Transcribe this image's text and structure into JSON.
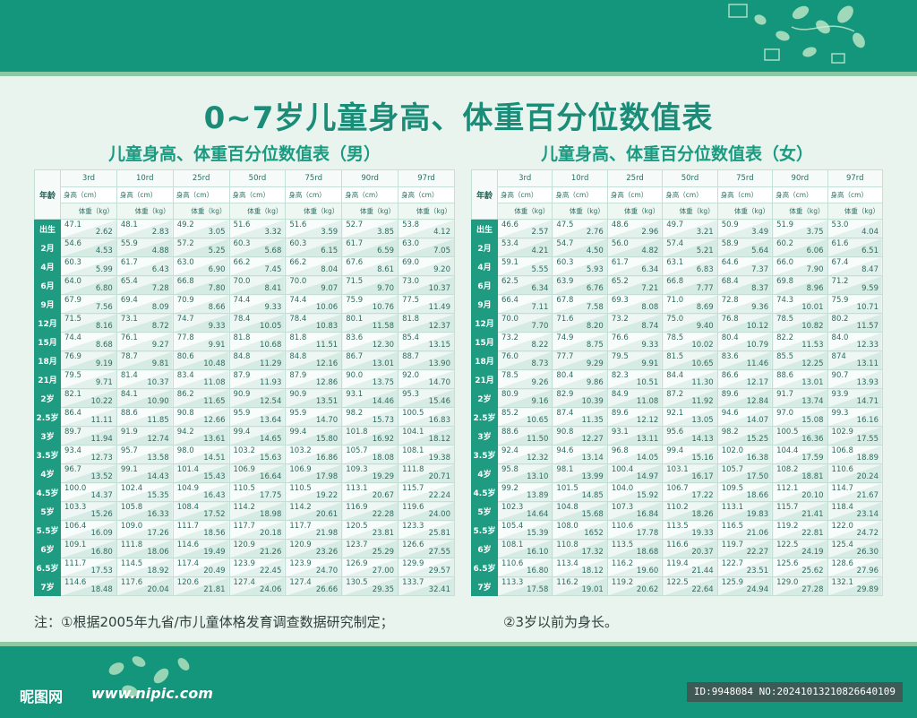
{
  "title": "0~7岁儿童身高、体重百分位数值表",
  "columns": [
    "3rd",
    "10rd",
    "25rd",
    "50rd",
    "75rd",
    "90rd",
    "97rd"
  ],
  "age_header": "年龄",
  "height_unit": "身高（cm）",
  "weight_unit": "体重（kg）",
  "ages": [
    "出生",
    "2月",
    "4月",
    "6月",
    "9月",
    "12月",
    "15月",
    "18月",
    "21月",
    "2岁",
    "2.5岁",
    "3岁",
    "3.5岁",
    "4岁",
    "4.5岁",
    "5岁",
    "5.5岁",
    "6岁",
    "6.5岁",
    "7岁"
  ],
  "boys": {
    "subtitle": "儿童身高、体重百分位数值表（男）",
    "rows": [
      [
        [
          "47.1",
          "2.62"
        ],
        [
          "48.1",
          "2.83"
        ],
        [
          "49.2",
          "3.05"
        ],
        [
          "51.6",
          "3.32"
        ],
        [
          "51.6",
          "3.59"
        ],
        [
          "52.7",
          "3.85"
        ],
        [
          "53.8",
          "4.12"
        ]
      ],
      [
        [
          "54.6",
          "4.53"
        ],
        [
          "55.9",
          "4.88"
        ],
        [
          "57.2",
          "5.25"
        ],
        [
          "60.3",
          "5.68"
        ],
        [
          "60.3",
          "6.15"
        ],
        [
          "61.7",
          "6.59"
        ],
        [
          "63.0",
          "7.05"
        ]
      ],
      [
        [
          "60.3",
          "5.99"
        ],
        [
          "61.7",
          "6.43"
        ],
        [
          "63.0",
          "6.90"
        ],
        [
          "66.2",
          "7.45"
        ],
        [
          "66.2",
          "8.04"
        ],
        [
          "67.6",
          "8.61"
        ],
        [
          "69.0",
          "9.20"
        ]
      ],
      [
        [
          "64.0",
          "6.80"
        ],
        [
          "65.4",
          "7.28"
        ],
        [
          "66.8",
          "7.80"
        ],
        [
          "70.0",
          "8.41"
        ],
        [
          "70.0",
          "9.07"
        ],
        [
          "71.5",
          "9.70"
        ],
        [
          "73.0",
          "10.37"
        ]
      ],
      [
        [
          "67.9",
          "7.56"
        ],
        [
          "69.4",
          "8.09"
        ],
        [
          "70.9",
          "8.66"
        ],
        [
          "74.4",
          "9.33"
        ],
        [
          "74.4",
          "10.06"
        ],
        [
          "75.9",
          "10.76"
        ],
        [
          "77.5",
          "11.49"
        ]
      ],
      [
        [
          "71.5",
          "8.16"
        ],
        [
          "73.1",
          "8.72"
        ],
        [
          "74.7",
          "9.33"
        ],
        [
          "78.4",
          "10.05"
        ],
        [
          "78.4",
          "10.83"
        ],
        [
          "80.1",
          "11.58"
        ],
        [
          "81.8",
          "12.37"
        ]
      ],
      [
        [
          "74.4",
          "8.68"
        ],
        [
          "76.1",
          "9.27"
        ],
        [
          "77.8",
          "9.91"
        ],
        [
          "81.8",
          "10.68"
        ],
        [
          "81.8",
          "11.51"
        ],
        [
          "83.6",
          "12.30"
        ],
        [
          "85.4",
          "13.15"
        ]
      ],
      [
        [
          "76.9",
          "9.19"
        ],
        [
          "78.7",
          "9.81"
        ],
        [
          "80.6",
          "10.48"
        ],
        [
          "84.8",
          "11.29"
        ],
        [
          "84.8",
          "12.16"
        ],
        [
          "86.7",
          "13.01"
        ],
        [
          "88.7",
          "13.90"
        ]
      ],
      [
        [
          "79.5",
          "9.71"
        ],
        [
          "81.4",
          "10.37"
        ],
        [
          "83.4",
          "11.08"
        ],
        [
          "87.9",
          "11.93"
        ],
        [
          "87.9",
          "12.86"
        ],
        [
          "90.0",
          "13.75"
        ],
        [
          "92.0",
          "14.70"
        ]
      ],
      [
        [
          "82.1",
          "10.22"
        ],
        [
          "84.1",
          "10.90"
        ],
        [
          "86.2",
          "11.65"
        ],
        [
          "90.9",
          "12.54"
        ],
        [
          "90.9",
          "13.51"
        ],
        [
          "93.1",
          "14.46"
        ],
        [
          "95.3",
          "15.46"
        ]
      ],
      [
        [
          "86.4",
          "11.11"
        ],
        [
          "88.6",
          "11.85"
        ],
        [
          "90.8",
          "12.66"
        ],
        [
          "95.9",
          "13.64"
        ],
        [
          "95.9",
          "14.70"
        ],
        [
          "98.2",
          "15.73"
        ],
        [
          "100.5",
          "16.83"
        ]
      ],
      [
        [
          "89.7",
          "11.94"
        ],
        [
          "91.9",
          "12.74"
        ],
        [
          "94.2",
          "13.61"
        ],
        [
          "99.4",
          "14.65"
        ],
        [
          "99.4",
          "15.80"
        ],
        [
          "101.8",
          "16.92"
        ],
        [
          "104.1",
          "18.12"
        ]
      ],
      [
        [
          "93.4",
          "12.73"
        ],
        [
          "95.7",
          "13.58"
        ],
        [
          "98.0",
          "14.51"
        ],
        [
          "103.2",
          "15.63"
        ],
        [
          "103.2",
          "16.86"
        ],
        [
          "105.7",
          "18.08"
        ],
        [
          "108.1",
          "19.38"
        ]
      ],
      [
        [
          "96.7",
          "13.52"
        ],
        [
          "99.1",
          "14.43"
        ],
        [
          "101.4",
          "15.43"
        ],
        [
          "106.9",
          "16.64"
        ],
        [
          "106.9",
          "17.98"
        ],
        [
          "109.3",
          "19.29"
        ],
        [
          "111.8",
          "20.71"
        ]
      ],
      [
        [
          "100.0",
          "14.37"
        ],
        [
          "102.4",
          "15.35"
        ],
        [
          "104.9",
          "16.43"
        ],
        [
          "110.5",
          "17.75"
        ],
        [
          "110.5",
          "19.22"
        ],
        [
          "113.1",
          "20.67"
        ],
        [
          "115.7",
          "22.24"
        ]
      ],
      [
        [
          "103.3",
          "15.26"
        ],
        [
          "105.8",
          "16.33"
        ],
        [
          "108.4",
          "17.52"
        ],
        [
          "114.2",
          "18.98"
        ],
        [
          "114.2",
          "20.61"
        ],
        [
          "116.9",
          "22.28"
        ],
        [
          "119.6",
          "24.00"
        ]
      ],
      [
        [
          "106.4",
          "16.09"
        ],
        [
          "109.0",
          "17.26"
        ],
        [
          "111.7",
          "18.56"
        ],
        [
          "117.7",
          "20.18"
        ],
        [
          "117.7",
          "21.98"
        ],
        [
          "120.5",
          "23.81"
        ],
        [
          "123.3",
          "25.81"
        ]
      ],
      [
        [
          "109.1",
          "16.80"
        ],
        [
          "111.8",
          "18.06"
        ],
        [
          "114.6",
          "19.49"
        ],
        [
          "120.9",
          "21.26"
        ],
        [
          "120.9",
          "23.26"
        ],
        [
          "123.7",
          "25.29"
        ],
        [
          "126.6",
          "27.55"
        ]
      ],
      [
        [
          "111.7",
          "17.53"
        ],
        [
          "114.5",
          "18.92"
        ],
        [
          "117.4",
          "20.49"
        ],
        [
          "123.9",
          "22.45"
        ],
        [
          "123.9",
          "24.70"
        ],
        [
          "126.9",
          "27.00"
        ],
        [
          "129.9",
          "29.57"
        ]
      ],
      [
        [
          "114.6",
          "18.48"
        ],
        [
          "117.6",
          "20.04"
        ],
        [
          "120.6",
          "21.81"
        ],
        [
          "127.4",
          "24.06"
        ],
        [
          "127.4",
          "26.66"
        ],
        [
          "130.5",
          "29.35"
        ],
        [
          "133.7",
          "32.41"
        ]
      ]
    ]
  },
  "girls": {
    "subtitle": "儿童身高、体重百分位数值表（女）",
    "rows": [
      [
        [
          "46.6",
          "2.57"
        ],
        [
          "47.5",
          "2.76"
        ],
        [
          "48.6",
          "2.96"
        ],
        [
          "49.7",
          "3.21"
        ],
        [
          "50.9",
          "3.49"
        ],
        [
          "51.9",
          "3.75"
        ],
        [
          "53.0",
          "4.04"
        ]
      ],
      [
        [
          "53.4",
          "4.21"
        ],
        [
          "54.7",
          "4.50"
        ],
        [
          "56.0",
          "4.82"
        ],
        [
          "57.4",
          "5.21"
        ],
        [
          "58.9",
          "5.64"
        ],
        [
          "60.2",
          "6.06"
        ],
        [
          "61.6",
          "6.51"
        ]
      ],
      [
        [
          "59.1",
          "5.55"
        ],
        [
          "60.3",
          "5.93"
        ],
        [
          "61.7",
          "6.34"
        ],
        [
          "63.1",
          "6.83"
        ],
        [
          "64.6",
          "7.37"
        ],
        [
          "66.0",
          "7.90"
        ],
        [
          "67.4",
          "8.47"
        ]
      ],
      [
        [
          "62.5",
          "6.34"
        ],
        [
          "63.9",
          "6.76"
        ],
        [
          "65.2",
          "7.21"
        ],
        [
          "66.8",
          "7.77"
        ],
        [
          "68.4",
          "8.37"
        ],
        [
          "69.8",
          "8.96"
        ],
        [
          "71.2",
          "9.59"
        ]
      ],
      [
        [
          "66.4",
          "7.11"
        ],
        [
          "67.8",
          "7.58"
        ],
        [
          "69.3",
          "8.08"
        ],
        [
          "71.0",
          "8.69"
        ],
        [
          "72.8",
          "9.36"
        ],
        [
          "74.3",
          "10.01"
        ],
        [
          "75.9",
          "10.71"
        ]
      ],
      [
        [
          "70.0",
          "7.70"
        ],
        [
          "71.6",
          "8.20"
        ],
        [
          "73.2",
          "8.74"
        ],
        [
          "75.0",
          "9.40"
        ],
        [
          "76.8",
          "10.12"
        ],
        [
          "78.5",
          "10.82"
        ],
        [
          "80.2",
          "11.57"
        ]
      ],
      [
        [
          "73.2",
          "8.22"
        ],
        [
          "74.9",
          "8.75"
        ],
        [
          "76.6",
          "9.33"
        ],
        [
          "78.5",
          "10.02"
        ],
        [
          "80.4",
          "10.79"
        ],
        [
          "82.2",
          "11.53"
        ],
        [
          "84.0",
          "12.33"
        ]
      ],
      [
        [
          "76.0",
          "8.73"
        ],
        [
          "77.7",
          "9.29"
        ],
        [
          "79.5",
          "9.91"
        ],
        [
          "81.5",
          "10.65"
        ],
        [
          "83.6",
          "11.46"
        ],
        [
          "85.5",
          "12.25"
        ],
        [
          "874",
          "13.11"
        ]
      ],
      [
        [
          "78.5",
          "9.26"
        ],
        [
          "80.4",
          "9.86"
        ],
        [
          "82.3",
          "10.51"
        ],
        [
          "84.4",
          "11.30"
        ],
        [
          "86.6",
          "12.17"
        ],
        [
          "88.6",
          "13.01"
        ],
        [
          "90.7",
          "13.93"
        ]
      ],
      [
        [
          "80.9",
          "9.16"
        ],
        [
          "82.9",
          "10.39"
        ],
        [
          "84.9",
          "11.08"
        ],
        [
          "87.2",
          "11.92"
        ],
        [
          "89.6",
          "12.84"
        ],
        [
          "91.7",
          "13.74"
        ],
        [
          "93.9",
          "14.71"
        ]
      ],
      [
        [
          "85.2",
          "10.65"
        ],
        [
          "87.4",
          "11.35"
        ],
        [
          "89.6",
          "12.12"
        ],
        [
          "92.1",
          "13.05"
        ],
        [
          "94.6",
          "14.07"
        ],
        [
          "97.0",
          "15.08"
        ],
        [
          "99.3",
          "16.16"
        ]
      ],
      [
        [
          "88.6",
          "11.50"
        ],
        [
          "90.8",
          "12.27"
        ],
        [
          "93.1",
          "13.11"
        ],
        [
          "95.6",
          "14.13"
        ],
        [
          "98.2",
          "15.25"
        ],
        [
          "100.5",
          "16.36"
        ],
        [
          "102.9",
          "17.55"
        ]
      ],
      [
        [
          "92.4",
          "12.32"
        ],
        [
          "94.6",
          "13.14"
        ],
        [
          "96.8",
          "14.05"
        ],
        [
          "99.4",
          "15.16"
        ],
        [
          "102.0",
          "16.38"
        ],
        [
          "104.4",
          "17.59"
        ],
        [
          "106.8",
          "18.89"
        ]
      ],
      [
        [
          "95.8",
          "13.10"
        ],
        [
          "98.1",
          "13.99"
        ],
        [
          "100.4",
          "14.97"
        ],
        [
          "103.1",
          "16.17"
        ],
        [
          "105.7",
          "17.50"
        ],
        [
          "108.2",
          "18.81"
        ],
        [
          "110.6",
          "20.24"
        ]
      ],
      [
        [
          "99.2",
          "13.89"
        ],
        [
          "101.5",
          "14.85"
        ],
        [
          "104.0",
          "15.92"
        ],
        [
          "106.7",
          "17.22"
        ],
        [
          "109.5",
          "18.66"
        ],
        [
          "112.1",
          "20.10"
        ],
        [
          "114.7",
          "21.67"
        ]
      ],
      [
        [
          "102.3",
          "14.64"
        ],
        [
          "104.8",
          "15.68"
        ],
        [
          "107.3",
          "16.84"
        ],
        [
          "110.2",
          "18.26"
        ],
        [
          "113.1",
          "19.83"
        ],
        [
          "115.7",
          "21.41"
        ],
        [
          "118.4",
          "23.14"
        ]
      ],
      [
        [
          "105.4",
          "15.39"
        ],
        [
          "108.0",
          "1652"
        ],
        [
          "110.6",
          "17.78"
        ],
        [
          "113.5",
          "19.33"
        ],
        [
          "116.5",
          "21.06"
        ],
        [
          "119.2",
          "22.81"
        ],
        [
          "122.0",
          "24.72"
        ]
      ],
      [
        [
          "108.1",
          "16.10"
        ],
        [
          "110.8",
          "17.32"
        ],
        [
          "113.5",
          "18.68"
        ],
        [
          "116.6",
          "20.37"
        ],
        [
          "119.7",
          "22.27"
        ],
        [
          "122.5",
          "24.19"
        ],
        [
          "125.4",
          "26.30"
        ]
      ],
      [
        [
          "110.6",
          "16.80"
        ],
        [
          "113.4",
          "18.12"
        ],
        [
          "116.2",
          "19.60"
        ],
        [
          "119.4",
          "21.44"
        ],
        [
          "122.7",
          "23.51"
        ],
        [
          "125.6",
          "25.62"
        ],
        [
          "128.6",
          "27.96"
        ]
      ],
      [
        [
          "113.3",
          "17.58"
        ],
        [
          "116.2",
          "19.01"
        ],
        [
          "119.2",
          "20.62"
        ],
        [
          "122.5",
          "22.64"
        ],
        [
          "125.9",
          "24.94"
        ],
        [
          "129.0",
          "27.28"
        ],
        [
          "132.1",
          "29.89"
        ]
      ]
    ]
  },
  "notes": {
    "note1": "注：①根据2005年九省/市儿童体格发育调查数据研究制定；",
    "note2": "②3岁以前为身长。"
  },
  "watermark": {
    "logo_text": "昵图网",
    "url": "www.nipic.com",
    "id_text": "ID:9948084 NO:20241013210826640109"
  },
  "colors": {
    "brand_green": "#14967c",
    "accent_light_green": "#8cc9a2",
    "age_column_green": "#1f9b82",
    "title_green": "#1a8c78"
  }
}
